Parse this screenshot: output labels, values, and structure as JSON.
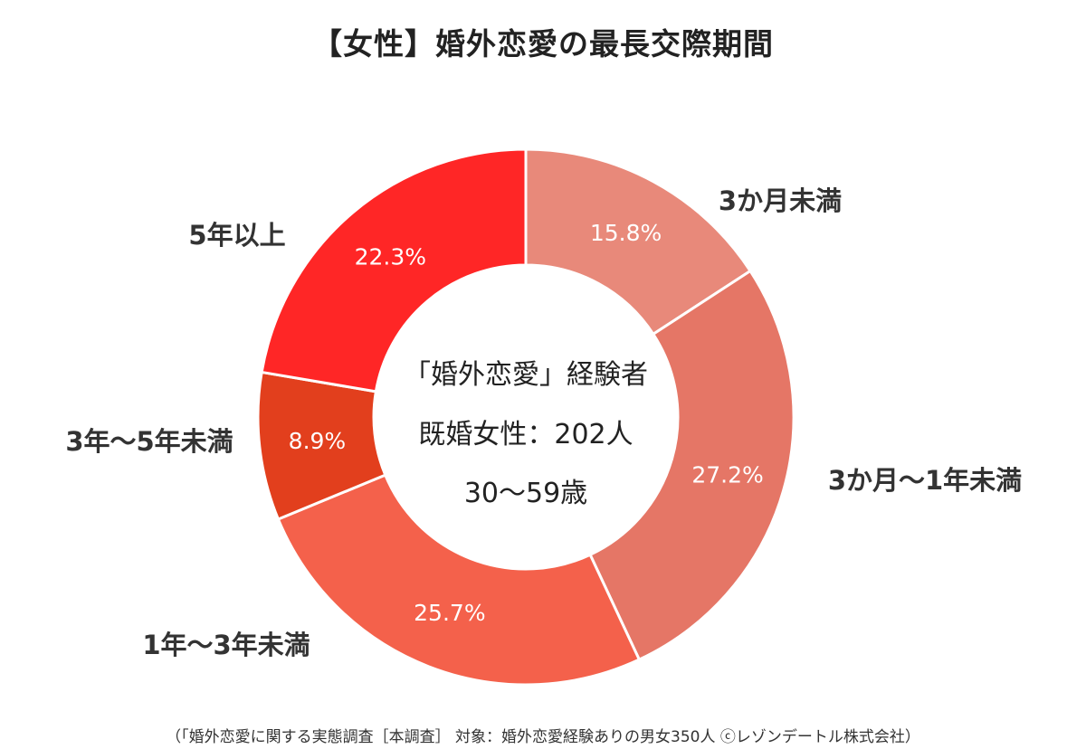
{
  "chart_data": {
    "type": "pie",
    "variant": "donut",
    "title": "【女性】婚外恋愛の最長交際期間",
    "center_text": [
      "「婚外恋愛」経験者",
      "既婚女性：202人",
      "30〜59歳"
    ],
    "series": [
      {
        "label": "3か月未満",
        "value": 15.8,
        "display": "15.8%",
        "color": "#E8897A"
      },
      {
        "label": "3か月〜1年未満",
        "value": 27.2,
        "display": "27.2%",
        "color": "#E57666"
      },
      {
        "label": "1年〜3年未満",
        "value": 25.7,
        "display": "25.7%",
        "color": "#F4614B"
      },
      {
        "label": "3年〜5年未満",
        "value": 8.9,
        "display": "8.9%",
        "color": "#E23F1D"
      },
      {
        "label": "5年以上",
        "value": 22.3,
        "display": "22.3%",
        "color": "#FF2626"
      }
    ],
    "start_angle": "12 o'clock",
    "direction": "clockwise",
    "legend": "none (labels beside slices)",
    "footnote": "（「婚外恋愛に関する実態調査［本調査］ 対象：婚外恋愛経験ありの男女350人 ⓒレゾンデートル株式会社）"
  }
}
